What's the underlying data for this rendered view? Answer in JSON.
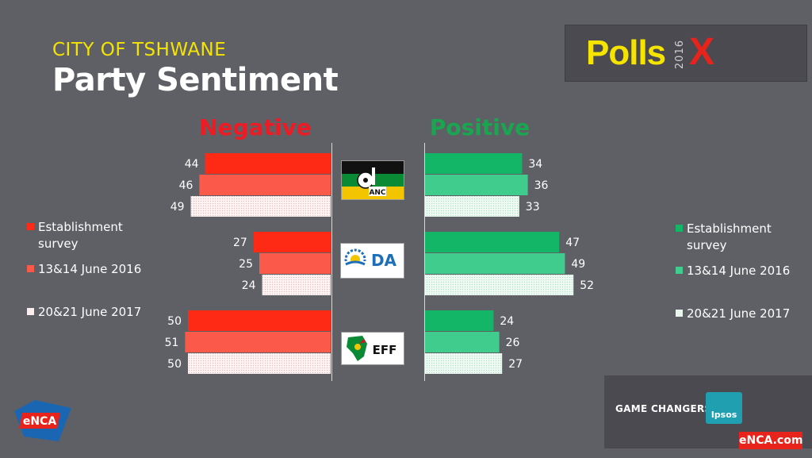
{
  "header": {
    "subtitle": "CITY OF TSHWANE",
    "title": "Party Sentiment"
  },
  "brand": {
    "polls_word": "Polls",
    "polls_year": "2016",
    "polls_x": "X",
    "game_changers": "GAME CHANGERS",
    "ipsos": "Ipsos",
    "enca_com": "eNCA.com",
    "enca": "eNCA"
  },
  "party_logos": [
    {
      "name": "ANC",
      "label": "ANC"
    },
    {
      "name": "DA",
      "label": "DA"
    },
    {
      "name": "EFF",
      "label": "EFF"
    }
  ],
  "legend": {
    "items": [
      {
        "label_line1": "Establishment",
        "label_line2": "survey"
      },
      {
        "label_line1": "13&14 June 2016",
        "label_line2": ""
      },
      {
        "label_line1": "20&21 June 2017",
        "label_line2": ""
      }
    ]
  },
  "colors": {
    "negative": [
      "#ff2a16",
      "#fb5a4a",
      "#fbeeee"
    ],
    "positive": [
      "#13b566",
      "#3fcc8c",
      "#e8f6ee"
    ],
    "negative_head": "#ed1c24",
    "positive_head": "#1aa550"
  },
  "chart_data": {
    "type": "bar",
    "orientation": "horizontal-diverging",
    "negative_label": "Negative",
    "positive_label": "Positive",
    "categories": [
      "ANC",
      "DA",
      "EFF"
    ],
    "series": [
      {
        "name": "Establishment survey",
        "negative": [
          44,
          27,
          50
        ],
        "positive": [
          34,
          47,
          24
        ]
      },
      {
        "name": "13&14 June 2016",
        "negative": [
          46,
          25,
          51
        ],
        "positive": [
          36,
          49,
          26
        ]
      },
      {
        "name": "20&21 June 2017",
        "negative": [
          49,
          24,
          50
        ],
        "positive": [
          33,
          52,
          27
        ]
      }
    ]
  }
}
